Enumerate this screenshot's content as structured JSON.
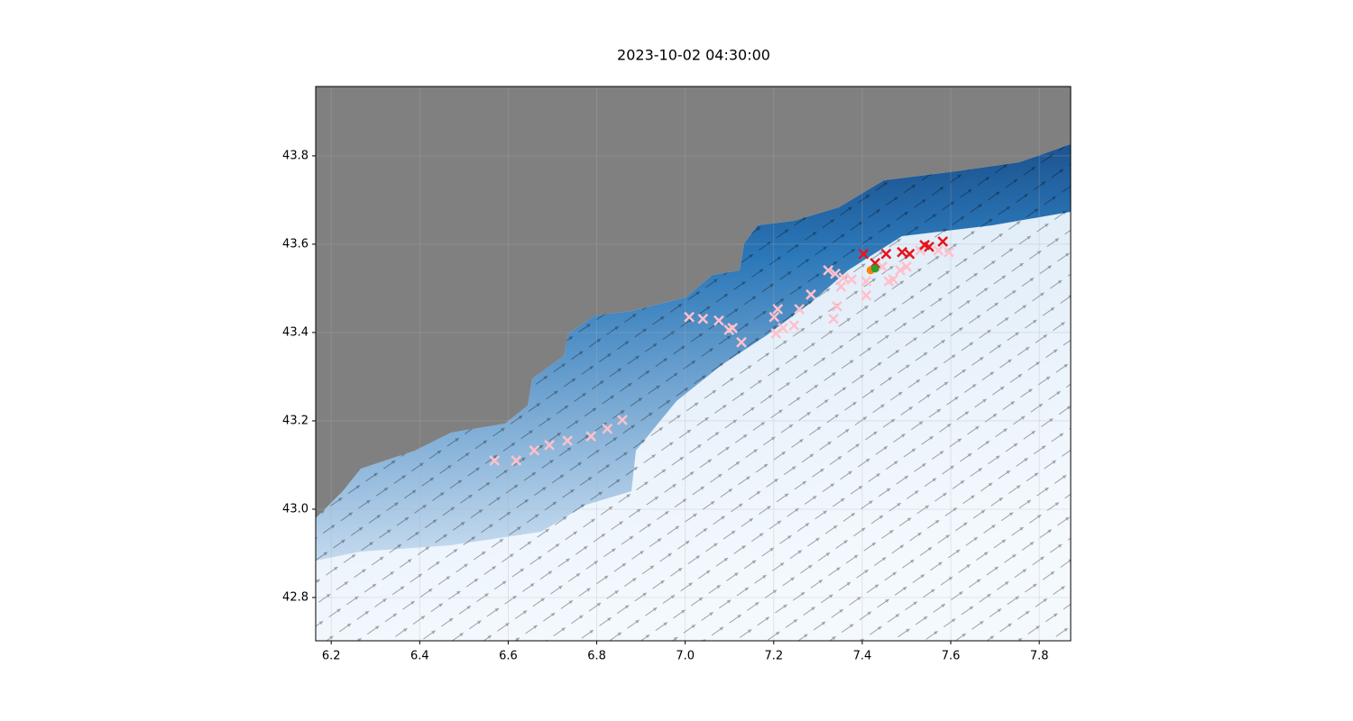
{
  "chart_data": {
    "type": "scatter",
    "title": "2023-10-02 04:30:00",
    "xlim": [
      6.165,
      7.871
    ],
    "ylim": [
      42.702,
      43.957
    ],
    "xticks": [
      6.2,
      6.4,
      6.6,
      6.8,
      {
        "value": 7,
        "label": "7.0"
      },
      7.2,
      7.4,
      7.6,
      7.8
    ],
    "yticks": [
      42.8,
      {
        "value": 43,
        "label": "43.0"
      },
      43.2,
      43.4,
      43.6,
      43.8
    ],
    "grid": true,
    "series": [
      {
        "color": "#ffc0cb",
        "marker": "x",
        "x": [
          6.569,
          6.618,
          6.659,
          6.693,
          6.734,
          6.787,
          6.824,
          6.858,
          7.009,
          7.04,
          7.076,
          7.107,
          7.127,
          7.099,
          7.201,
          7.209,
          7.205,
          7.221,
          7.246,
          7.258,
          7.284,
          7.323,
          7.339,
          7.352,
          7.358,
          7.343,
          7.335,
          7.376,
          7.409,
          7.409,
          7.445,
          7.46,
          7.47,
          7.486,
          7.5,
          7.531,
          7.572,
          7.596
        ],
        "y": [
          43.11,
          43.11,
          43.133,
          43.145,
          43.155,
          43.165,
          43.182,
          43.202,
          43.435,
          43.431,
          43.427,
          43.41,
          43.378,
          43.406,
          43.435,
          43.453,
          43.398,
          43.41,
          43.416,
          43.453,
          43.486,
          43.541,
          43.533,
          43.504,
          43.524,
          43.459,
          43.431,
          43.52,
          43.516,
          43.484,
          43.549,
          43.516,
          43.52,
          43.541,
          43.549,
          43.586,
          43.586,
          43.582
        ]
      },
      {
        "color": "#e8141c",
        "marker": "x",
        "x": [
          7.403,
          7.429,
          7.454,
          7.49,
          7.507,
          7.541,
          7.551,
          7.582
        ],
        "y": [
          43.578,
          43.557,
          43.578,
          43.582,
          43.578,
          43.598,
          43.594,
          43.606
        ]
      },
      {
        "color": "#ff7f0e",
        "marker": "o",
        "x": [
          7.419
        ],
        "y": [
          43.541
        ]
      },
      {
        "color": "#2ca02c",
        "marker": "o",
        "x": [
          7.429
        ],
        "y": [
          43.545
        ]
      }
    ]
  }
}
